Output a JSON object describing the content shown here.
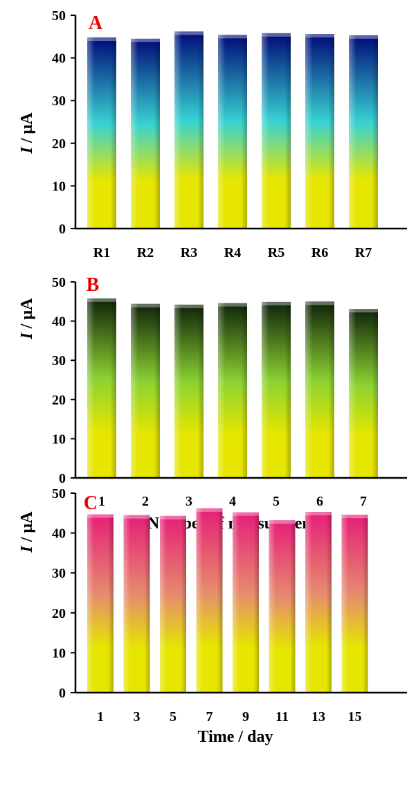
{
  "chart_data": [
    {
      "type": "bar",
      "panel_label": "A",
      "categories": [
        "R1",
        "R2",
        "R3",
        "R4",
        "R5",
        "R6",
        "R7"
      ],
      "values": [
        44.8,
        44.5,
        46.2,
        45.4,
        45.8,
        45.6,
        45.3
      ],
      "ylabel_italic": "I",
      "ylabel_rest": " / μA",
      "xlabel": "",
      "ylim": [
        0,
        50
      ],
      "yticks": [
        0,
        10,
        20,
        30,
        40,
        50
      ],
      "gradient": [
        "#000a78",
        "#37d2d2",
        "#e6e600"
      ],
      "grid": false
    },
    {
      "type": "bar",
      "panel_label": "B",
      "categories": [
        "1",
        "2",
        "3",
        "4",
        "5",
        "6",
        "7"
      ],
      "values": [
        45.8,
        44.4,
        44.2,
        44.6,
        44.9,
        45.0,
        43.1
      ],
      "ylabel_italic": "I",
      "ylabel_rest": " / μA",
      "xlabel": "Number of measurments",
      "ylim": [
        0,
        50
      ],
      "yticks": [
        0,
        10,
        20,
        30,
        40,
        50
      ],
      "gradient": [
        "#0f230a",
        "#8cd232",
        "#e6e600"
      ],
      "grid": false
    },
    {
      "type": "bar",
      "panel_label": "C",
      "categories": [
        "1",
        "3",
        "5",
        "7",
        "9",
        "11",
        "13",
        "15"
      ],
      "values": [
        44.7,
        44.5,
        44.3,
        46.2,
        45.2,
        43.2,
        45.3,
        44.6
      ],
      "ylabel_italic": "I",
      "ylabel_rest": " / μA",
      "xlabel": "Time / day",
      "ylim": [
        0,
        50
      ],
      "yticks": [
        0,
        10,
        20,
        30,
        40,
        50
      ],
      "gradient": [
        "#e61e78",
        "#e68c6e",
        "#e6e600"
      ],
      "grid": false
    }
  ],
  "colors": {
    "panel_label": "#e60000",
    "axis": "#000000"
  }
}
